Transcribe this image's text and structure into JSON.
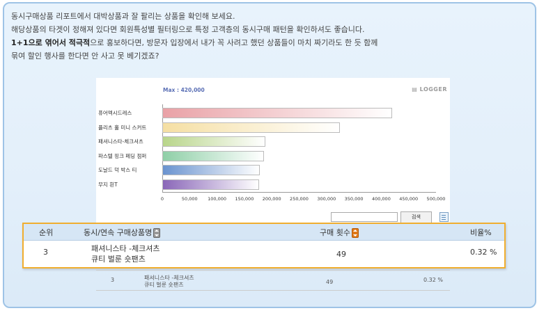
{
  "intro": {
    "line1": "동시구매상품 리포트에서 대박상품과 잘 팔리는 상품을 확인해 보세요.",
    "line2": "해당상품의 타겟이 정해져 있다면 회원특성별 필터링으로 특정 고객층의 동시구매 패턴을 확인하셔도 좋습니다.",
    "line3_bold": "1+1으로 엮어서 적극적",
    "line3_rest": "으로 홍보하다면, 방문자 입장에서 내가 꼭 사려고 했던 상품들이 마치 짜기라도 한 듯 함께",
    "line4": "묶여 할인 행사를 한다면 안 사고 못 베기겠죠?"
  },
  "chart_header": {
    "max_label": "Max : 420,000",
    "brand": "LOGGER"
  },
  "chart_data": {
    "type": "bar",
    "orientation": "horizontal",
    "categories": [
      "퓨어멕시드레스",
      "플리츠 홀 미니 스커트",
      "패셔니스타-체크셔츠",
      "파스텔 핑크 페딩 점퍼",
      "도날드 덕 박스 티",
      "무지 흰T"
    ],
    "values": [
      420000,
      325000,
      188000,
      186000,
      178000,
      177000
    ],
    "colors": [
      "#e9a1a6",
      "#f5dfa3",
      "#b8d58a",
      "#8fcfa7",
      "#6a93cf",
      "#8a67b8"
    ],
    "xlim": [
      0,
      500000
    ],
    "xticks": [
      "0",
      "50,000",
      "100,000",
      "150,000",
      "200,000",
      "250,000",
      "300,000",
      "350,000",
      "400,000",
      "450,000",
      "500,000"
    ],
    "max": 420000
  },
  "search": {
    "value": "",
    "button": "검색"
  },
  "table": {
    "headers": {
      "rank": "순위",
      "product": "동시/연속 구매상품명",
      "count": "구매 횟수",
      "ratio": "비율%"
    },
    "row": {
      "rank": "3",
      "product_line1": "패셔니스타 -체크셔츠",
      "product_line2": "큐티 벌룬 숏팬츠",
      "count": "49",
      "ratio": "0.32 %"
    }
  },
  "ghost_row": {
    "rank": "3",
    "product_line1": "패셔니스타 -체크셔츠",
    "product_line2": "큐티 벌룬 숏팬츠",
    "count": "49",
    "ratio": "0.32 %"
  }
}
